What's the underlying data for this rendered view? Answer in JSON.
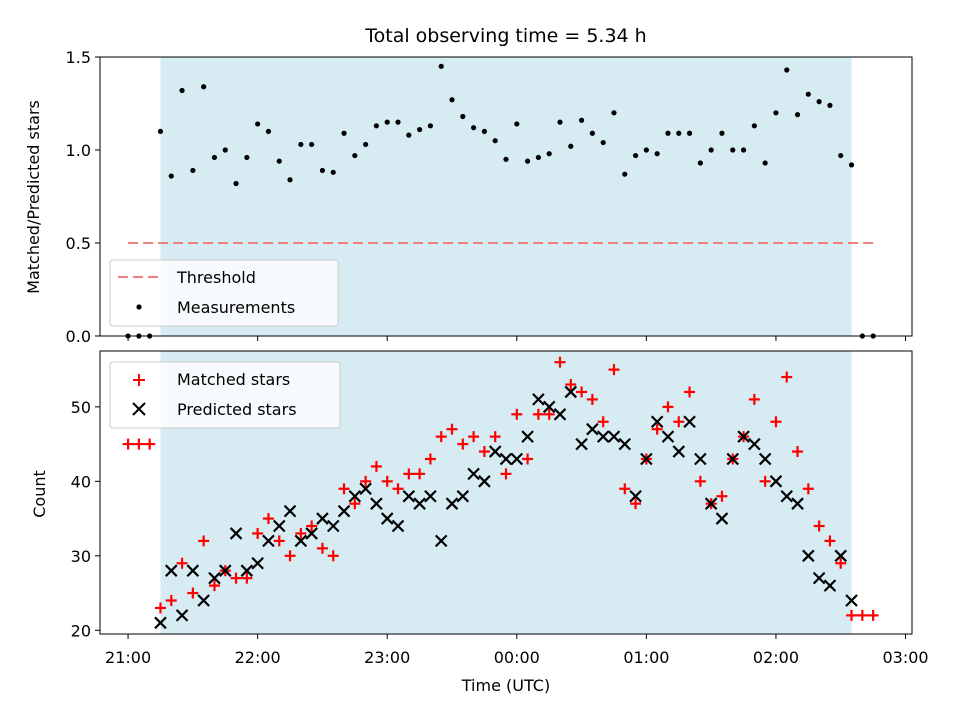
{
  "chart_data": [
    {
      "type": "scatter",
      "title": "Total observing time = 5.34 h",
      "xlabel": "",
      "ylabel": "Matched/Predicted stars",
      "xlim": [
        "20:47",
        "03:03"
      ],
      "ylim": [
        0,
        1.5
      ],
      "yticks": [
        "0.0",
        "0.5",
        "1.0",
        "1.5"
      ],
      "shaded_interval": [
        "21:15",
        "02:35"
      ],
      "shade_color": "#add8e6",
      "threshold": {
        "name": "Threshold",
        "value": 0.5,
        "x_range": [
          "21:00",
          "02:45"
        ],
        "color": "#f08080",
        "style": "dashed"
      },
      "series": [
        {
          "name": "Measurements",
          "color": "#000000",
          "marker": "dot",
          "x": [
            "21:00",
            "21:05",
            "21:10",
            "21:15",
            "21:20",
            "21:25",
            "21:30",
            "21:35",
            "21:40",
            "21:45",
            "21:50",
            "21:55",
            "22:00",
            "22:05",
            "22:10",
            "22:15",
            "22:20",
            "22:25",
            "22:30",
            "22:35",
            "22:40",
            "22:45",
            "22:50",
            "22:55",
            "23:00",
            "23:05",
            "23:10",
            "23:15",
            "23:20",
            "23:25",
            "23:30",
            "23:35",
            "23:40",
            "23:45",
            "23:50",
            "23:55",
            "00:00",
            "00:05",
            "00:10",
            "00:15",
            "00:20",
            "00:25",
            "00:30",
            "00:35",
            "00:40",
            "00:45",
            "00:50",
            "00:55",
            "01:00",
            "01:05",
            "01:10",
            "01:15",
            "01:20",
            "01:25",
            "01:30",
            "01:35",
            "01:40",
            "01:45",
            "01:50",
            "01:55",
            "02:00",
            "02:05",
            "02:10",
            "02:15",
            "02:20",
            "02:25",
            "02:30",
            "02:35",
            "02:40",
            "02:45"
          ],
          "y": [
            0.0,
            0.0,
            0.0,
            1.1,
            0.86,
            1.32,
            0.89,
            1.34,
            0.96,
            1.0,
            0.82,
            0.96,
            1.14,
            1.1,
            0.94,
            0.84,
            1.03,
            1.03,
            0.89,
            0.88,
            1.09,
            0.97,
            1.03,
            1.13,
            1.15,
            1.15,
            1.08,
            1.11,
            1.13,
            1.45,
            1.27,
            1.18,
            1.12,
            1.1,
            1.05,
            0.95,
            1.14,
            0.94,
            0.96,
            0.98,
            1.15,
            1.02,
            1.16,
            1.09,
            1.04,
            1.2,
            0.87,
            0.97,
            1.0,
            0.98,
            1.09,
            1.09,
            1.09,
            0.93,
            1.0,
            1.09,
            1.0,
            1.0,
            1.13,
            0.93,
            1.2,
            1.43,
            1.19,
            1.3,
            1.26,
            1.24,
            0.97,
            0.92,
            0.0,
            0.0
          ]
        }
      ],
      "legend": {
        "location": "lower-left",
        "entries": [
          "Threshold",
          "Measurements"
        ]
      }
    },
    {
      "type": "scatter",
      "title": "",
      "xlabel": "Time (UTC)",
      "ylabel": "Count",
      "xlim": [
        "20:47",
        "03:03"
      ],
      "ylim": [
        19.5,
        57.5
      ],
      "yticks": [
        "20",
        "30",
        "40",
        "50"
      ],
      "xticks": [
        "21:00",
        "22:00",
        "23:00",
        "00:00",
        "01:00",
        "02:00",
        "03:00"
      ],
      "shaded_interval": [
        "21:15",
        "02:35"
      ],
      "shade_color": "#add8e6",
      "series": [
        {
          "name": "Matched stars",
          "color": "#ff0000",
          "marker": "plus",
          "x": [
            "21:00",
            "21:05",
            "21:10",
            "21:15",
            "21:20",
            "21:25",
            "21:30",
            "21:35",
            "21:40",
            "21:45",
            "21:50",
            "21:55",
            "22:00",
            "22:05",
            "22:10",
            "22:15",
            "22:20",
            "22:25",
            "22:30",
            "22:35",
            "22:40",
            "22:45",
            "22:50",
            "22:55",
            "23:00",
            "23:05",
            "23:10",
            "23:15",
            "23:20",
            "23:25",
            "23:30",
            "23:35",
            "23:40",
            "23:45",
            "23:50",
            "23:55",
            "00:00",
            "00:05",
            "00:10",
            "00:15",
            "00:20",
            "00:25",
            "00:30",
            "00:35",
            "00:40",
            "00:45",
            "00:50",
            "00:55",
            "01:00",
            "01:05",
            "01:10",
            "01:15",
            "01:20",
            "01:25",
            "01:30",
            "01:35",
            "01:40",
            "01:45",
            "01:50",
            "01:55",
            "02:00",
            "02:05",
            "02:10",
            "02:15",
            "02:20",
            "02:25",
            "02:30",
            "02:35",
            "02:40",
            "02:45"
          ],
          "y": [
            45,
            45,
            45,
            23,
            24,
            29,
            25,
            32,
            26,
            28,
            27,
            27,
            33,
            35,
            32,
            30,
            33,
            34,
            31,
            30,
            39,
            37,
            40,
            42,
            40,
            39,
            41,
            41,
            43,
            46,
            47,
            45,
            46,
            44,
            46,
            41,
            49,
            43,
            49,
            49,
            56,
            53,
            52,
            51,
            48,
            55,
            39,
            37,
            43,
            47,
            50,
            48,
            52,
            40,
            37,
            38,
            43,
            46,
            51,
            40,
            48,
            54,
            44,
            39,
            34,
            32,
            29,
            22,
            22,
            22
          ]
        },
        {
          "name": "Predicted stars",
          "color": "#000000",
          "marker": "x",
          "x": [
            "21:15",
            "21:20",
            "21:25",
            "21:30",
            "21:35",
            "21:40",
            "21:45",
            "21:50",
            "21:55",
            "22:00",
            "22:05",
            "22:10",
            "22:15",
            "22:20",
            "22:25",
            "22:30",
            "22:35",
            "22:40",
            "22:45",
            "22:50",
            "22:55",
            "23:00",
            "23:05",
            "23:10",
            "23:15",
            "23:20",
            "23:25",
            "23:30",
            "23:35",
            "23:40",
            "23:45",
            "23:50",
            "23:55",
            "00:00",
            "00:05",
            "00:10",
            "00:15",
            "00:20",
            "00:25",
            "00:30",
            "00:35",
            "00:40",
            "00:45",
            "00:50",
            "00:55",
            "01:00",
            "01:05",
            "01:10",
            "01:15",
            "01:20",
            "01:25",
            "01:30",
            "01:35",
            "01:40",
            "01:45",
            "01:50",
            "01:55",
            "02:00",
            "02:05",
            "02:10",
            "02:15",
            "02:20",
            "02:25",
            "02:30",
            "02:35"
          ],
          "y": [
            21,
            28,
            22,
            28,
            24,
            27,
            28,
            33,
            28,
            29,
            32,
            34,
            36,
            32,
            33,
            35,
            34,
            36,
            38,
            39,
            37,
            35,
            34,
            38,
            37,
            38,
            32,
            37,
            38,
            41,
            40,
            44,
            43,
            43,
            46,
            51,
            50,
            49,
            52,
            45,
            47,
            46,
            46,
            45,
            38,
            43,
            48,
            46,
            44,
            48,
            43,
            37,
            35,
            43,
            46,
            45,
            43,
            40,
            38,
            37,
            30,
            27,
            26,
            30,
            24
          ]
        }
      ],
      "legend": {
        "location": "upper-left",
        "entries": [
          "Matched stars",
          "Predicted stars"
        ]
      }
    }
  ]
}
